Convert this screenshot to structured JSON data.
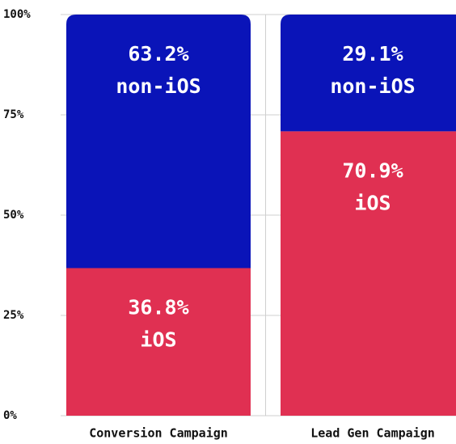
{
  "chart_data": {
    "type": "stacked_bar",
    "categories": [
      "Conversion Campaign",
      "Lead Gen Campaign"
    ],
    "series": [
      {
        "name": "iOS",
        "color": "#e03052",
        "values": [
          36.8,
          70.9
        ],
        "value_labels": [
          "36.8%",
          "70.9%"
        ]
      },
      {
        "name": "non-iOS",
        "color": "#0a14b8",
        "values": [
          63.2,
          29.1
        ],
        "value_labels": [
          "63.2%",
          "29.1%"
        ]
      }
    ],
    "ylim": [
      0,
      100
    ],
    "yticks": [
      {
        "value": 0,
        "label": "0%"
      },
      {
        "value": 25,
        "label": "25%"
      },
      {
        "value": 50,
        "label": "50%"
      },
      {
        "value": 75,
        "label": "75%"
      },
      {
        "value": 100,
        "label": "100%"
      }
    ],
    "grid": true
  }
}
